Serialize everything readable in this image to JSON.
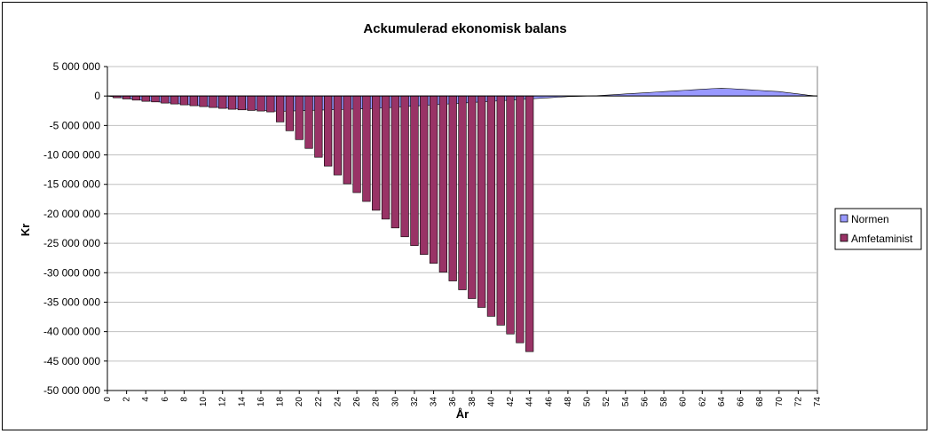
{
  "chart_data": {
    "type": "bar",
    "title": "Ackumulerad ekonomisk balans",
    "xlabel": "År",
    "ylabel": "Kr",
    "ylim": [
      -50000000,
      5000000
    ],
    "xlim": [
      0,
      74
    ],
    "grid": true,
    "legend_position": "right",
    "y_ticks": [
      {
        "value": 5000000,
        "label": "5 000 000"
      },
      {
        "value": 0,
        "label": "0"
      },
      {
        "value": -5000000,
        "label": "-5 000 000"
      },
      {
        "value": -10000000,
        "label": "-10 000 000"
      },
      {
        "value": -15000000,
        "label": "-15 000 000"
      },
      {
        "value": -20000000,
        "label": "-20 000 000"
      },
      {
        "value": -25000000,
        "label": "-25 000 000"
      },
      {
        "value": -30000000,
        "label": "-30 000 000"
      },
      {
        "value": -35000000,
        "label": "-35 000 000"
      },
      {
        "value": -40000000,
        "label": "-40 000 000"
      },
      {
        "value": -45000000,
        "label": "-45 000 000"
      },
      {
        "value": -50000000,
        "label": "-50 000 000"
      }
    ],
    "x_tick_labels": [
      "0",
      "2",
      "4",
      "6",
      "8",
      "10",
      "12",
      "14",
      "16",
      "18",
      "20",
      "22",
      "24",
      "26",
      "28",
      "30",
      "32",
      "34",
      "36",
      "38",
      "40",
      "42",
      "44",
      "46",
      "48",
      "50",
      "52",
      "54",
      "56",
      "58",
      "60",
      "62",
      "64",
      "66",
      "68",
      "70",
      "72",
      "74"
    ],
    "series": [
      {
        "name": "Normen",
        "kind": "area",
        "color": "#9999ff",
        "x": [
          0,
          1,
          2,
          3,
          4,
          5,
          6,
          7,
          8,
          9,
          10,
          11,
          12,
          13,
          14,
          15,
          16,
          17,
          18,
          19,
          20,
          21,
          22,
          23,
          24,
          25,
          26,
          27,
          28,
          29,
          30,
          31,
          32,
          33,
          34,
          35,
          36,
          37,
          38,
          39,
          40,
          41,
          42,
          43,
          44,
          45,
          46,
          47,
          48,
          49,
          50,
          51,
          52,
          53,
          54,
          55,
          56,
          57,
          58,
          59,
          60,
          61,
          62,
          63,
          64,
          65,
          66,
          67,
          68,
          69,
          70,
          71,
          72,
          73,
          74
        ],
        "values": [
          0,
          -200000,
          -400000,
          -600000,
          -800000,
          -950000,
          -1100000,
          -1250000,
          -1400000,
          -1550000,
          -1700000,
          -1850000,
          -2000000,
          -2100000,
          -2200000,
          -2300000,
          -2400000,
          -2500000,
          -2600000,
          -2550000,
          -2500000,
          -2450000,
          -2400000,
          -2350000,
          -2300000,
          -2250000,
          -2200000,
          -2150000,
          -2100000,
          -2000000,
          -1900000,
          -1800000,
          -1700000,
          -1600000,
          -1500000,
          -1400000,
          -1300000,
          -1200000,
          -1100000,
          -1000000,
          -900000,
          -800000,
          -700000,
          -600000,
          -500000,
          -400000,
          -300000,
          -200000,
          -100000,
          -50000,
          0,
          50000,
          150000,
          250000,
          350000,
          450000,
          550000,
          650000,
          750000,
          850000,
          950000,
          1050000,
          1150000,
          1250000,
          1300000,
          1250000,
          1150000,
          1050000,
          950000,
          850000,
          750000,
          550000,
          350000,
          150000,
          0
        ]
      },
      {
        "name": "Amfetaminist",
        "kind": "bar",
        "color": "#993366",
        "x": [
          1,
          2,
          3,
          4,
          5,
          6,
          7,
          8,
          9,
          10,
          11,
          12,
          13,
          14,
          15,
          16,
          17,
          18,
          19,
          20,
          21,
          22,
          23,
          24,
          25,
          26,
          27,
          28,
          29,
          30,
          31,
          32,
          33,
          34,
          35,
          36,
          37,
          38,
          39,
          40,
          41,
          42,
          43,
          44
        ],
        "values": [
          -300000,
          -500000,
          -700000,
          -900000,
          -1000000,
          -1200000,
          -1350000,
          -1500000,
          -1650000,
          -1800000,
          -1950000,
          -2100000,
          -2250000,
          -2350000,
          -2450000,
          -2550000,
          -2700000,
          -4400000,
          -5900000,
          -7400000,
          -8900000,
          -10400000,
          -11900000,
          -13400000,
          -14900000,
          -16400000,
          -17900000,
          -19400000,
          -20900000,
          -22400000,
          -23900000,
          -25400000,
          -26900000,
          -28400000,
          -29900000,
          -31400000,
          -32900000,
          -34400000,
          -35900000,
          -37400000,
          -38900000,
          -40400000,
          -41900000,
          -43400000
        ]
      }
    ]
  }
}
